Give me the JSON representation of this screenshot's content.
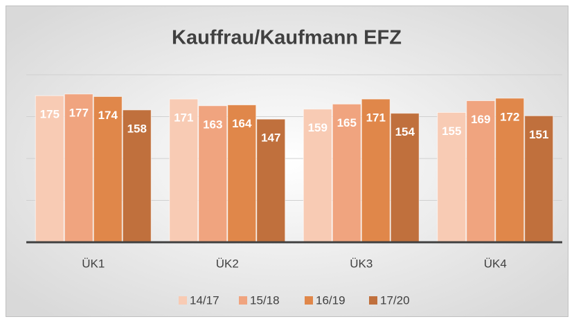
{
  "chart_data": {
    "type": "bar",
    "title": "Kauffrau/Kaufmann EFZ",
    "categories": [
      "ÜK1",
      "ÜK2",
      "ÜK3",
      "ÜK4"
    ],
    "series": [
      {
        "name": "14/17",
        "color": "#f8cbb4",
        "values": [
          175,
          171,
          159,
          155
        ]
      },
      {
        "name": "15/18",
        "color": "#f0a47f",
        "values": [
          177,
          163,
          165,
          169
        ]
      },
      {
        "name": "16/19",
        "color": "#e0874a",
        "values": [
          174,
          164,
          171,
          172
        ]
      },
      {
        "name": "17/20",
        "color": "#c0703d",
        "values": [
          158,
          147,
          154,
          151
        ]
      }
    ],
    "ylim": [
      0,
      200
    ],
    "yticks": [
      0,
      50,
      100,
      150,
      200
    ],
    "grid": true,
    "legend": "bottom"
  }
}
